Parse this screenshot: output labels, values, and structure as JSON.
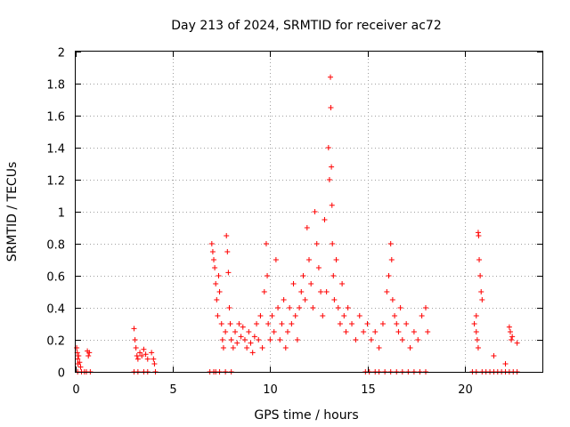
{
  "chart_data": {
    "type": "scatter",
    "title": "Day 213 of 2024, SRMTID for receiver ac72",
    "xlabel": "GPS time / hours",
    "ylabel": "SRMTID / TECUs",
    "xlim": [
      0,
      24
    ],
    "ylim": [
      0,
      2
    ],
    "xticks": [
      0,
      5,
      10,
      15,
      20
    ],
    "xtick_labels": [
      "0",
      "5",
      "10",
      "15",
      "20"
    ],
    "yticks": [
      0,
      0.2,
      0.4,
      0.6,
      0.8,
      1,
      1.2,
      1.4,
      1.6,
      1.8,
      2
    ],
    "ytick_labels": [
      "0",
      "0.2",
      "0.4",
      "0.6",
      "0.8",
      "1",
      "1.2",
      "1.4",
      "1.6",
      "1.8",
      "2"
    ],
    "grid": true,
    "marker": "plus",
    "color": "#ff0000",
    "series": [
      {
        "name": "SRMTID",
        "points": [
          [
            0.05,
            0.15
          ],
          [
            0.08,
            0.12
          ],
          [
            0.1,
            0.08
          ],
          [
            0.12,
            0.05
          ],
          [
            0.15,
            0.1
          ],
          [
            0.2,
            0.06
          ],
          [
            0.25,
            0.03
          ],
          [
            0.6,
            0.13
          ],
          [
            0.65,
            0.1
          ],
          [
            0.7,
            0.12
          ],
          [
            0.1,
            0.0
          ],
          [
            0.3,
            0.0
          ],
          [
            0.45,
            0.0
          ],
          [
            0.55,
            0.0
          ],
          [
            0.75,
            0.0
          ],
          [
            3.0,
            0.27
          ],
          [
            3.05,
            0.2
          ],
          [
            3.1,
            0.15
          ],
          [
            3.15,
            0.1
          ],
          [
            3.2,
            0.08
          ],
          [
            3.3,
            0.12
          ],
          [
            3.4,
            0.1
          ],
          [
            3.5,
            0.14
          ],
          [
            3.6,
            0.11
          ],
          [
            3.7,
            0.08
          ],
          [
            3.9,
            0.12
          ],
          [
            4.0,
            0.08
          ],
          [
            4.05,
            0.05
          ],
          [
            3.0,
            0.0
          ],
          [
            3.2,
            0.0
          ],
          [
            3.5,
            0.0
          ],
          [
            3.7,
            0.0
          ],
          [
            4.1,
            0.0
          ],
          [
            6.9,
            0.0
          ],
          [
            7.1,
            0.0
          ],
          [
            7.2,
            0.0
          ],
          [
            7.4,
            0.0
          ],
          [
            7.7,
            0.0
          ],
          [
            8.0,
            0.0
          ],
          [
            7.0,
            0.8
          ],
          [
            7.05,
            0.75
          ],
          [
            7.1,
            0.7
          ],
          [
            7.15,
            0.65
          ],
          [
            7.2,
            0.55
          ],
          [
            7.25,
            0.45
          ],
          [
            7.3,
            0.35
          ],
          [
            7.35,
            0.6
          ],
          [
            7.4,
            0.5
          ],
          [
            7.5,
            0.3
          ],
          [
            7.55,
            0.2
          ],
          [
            7.6,
            0.15
          ],
          [
            7.7,
            0.25
          ],
          [
            7.75,
            0.85
          ],
          [
            7.8,
            0.75
          ],
          [
            7.85,
            0.62
          ],
          [
            7.9,
            0.4
          ],
          [
            7.95,
            0.3
          ],
          [
            8.0,
            0.2
          ],
          [
            8.1,
            0.15
          ],
          [
            8.2,
            0.25
          ],
          [
            8.3,
            0.18
          ],
          [
            8.4,
            0.3
          ],
          [
            8.5,
            0.22
          ],
          [
            8.6,
            0.28
          ],
          [
            8.7,
            0.2
          ],
          [
            8.8,
            0.15
          ],
          [
            8.9,
            0.25
          ],
          [
            9.0,
            0.18
          ],
          [
            9.1,
            0.12
          ],
          [
            9.2,
            0.22
          ],
          [
            9.3,
            0.3
          ],
          [
            9.4,
            0.2
          ],
          [
            9.5,
            0.35
          ],
          [
            9.6,
            0.15
          ],
          [
            9.7,
            0.5
          ],
          [
            9.8,
            0.8
          ],
          [
            9.85,
            0.6
          ],
          [
            9.9,
            0.3
          ],
          [
            10.0,
            0.2
          ],
          [
            10.1,
            0.35
          ],
          [
            10.2,
            0.25
          ],
          [
            10.3,
            0.7
          ],
          [
            10.4,
            0.4
          ],
          [
            10.5,
            0.2
          ],
          [
            10.6,
            0.3
          ],
          [
            10.7,
            0.45
          ],
          [
            10.8,
            0.15
          ],
          [
            10.9,
            0.25
          ],
          [
            11.0,
            0.4
          ],
          [
            11.1,
            0.3
          ],
          [
            11.2,
            0.55
          ],
          [
            11.3,
            0.35
          ],
          [
            11.4,
            0.2
          ],
          [
            11.5,
            0.4
          ],
          [
            11.6,
            0.5
          ],
          [
            11.7,
            0.6
          ],
          [
            11.8,
            0.45
          ],
          [
            11.9,
            0.9
          ],
          [
            12.0,
            0.7
          ],
          [
            12.1,
            0.55
          ],
          [
            12.2,
            0.4
          ],
          [
            12.3,
            1.0
          ],
          [
            12.4,
            0.8
          ],
          [
            12.5,
            0.65
          ],
          [
            12.6,
            0.5
          ],
          [
            12.7,
            0.35
          ],
          [
            12.8,
            0.95
          ],
          [
            12.9,
            0.5
          ],
          [
            13.0,
            1.4
          ],
          [
            13.05,
            1.2
          ],
          [
            13.1,
            1.84
          ],
          [
            13.12,
            1.65
          ],
          [
            13.15,
            1.28
          ],
          [
            13.18,
            1.04
          ],
          [
            13.2,
            0.8
          ],
          [
            13.25,
            0.6
          ],
          [
            13.3,
            0.45
          ],
          [
            13.4,
            0.7
          ],
          [
            13.5,
            0.4
          ],
          [
            13.6,
            0.3
          ],
          [
            13.7,
            0.55
          ],
          [
            13.8,
            0.35
          ],
          [
            13.9,
            0.25
          ],
          [
            14.0,
            0.4
          ],
          [
            14.2,
            0.3
          ],
          [
            14.4,
            0.2
          ],
          [
            14.6,
            0.35
          ],
          [
            14.8,
            0.25
          ],
          [
            15.0,
            0.3
          ],
          [
            15.2,
            0.2
          ],
          [
            15.4,
            0.25
          ],
          [
            15.6,
            0.15
          ],
          [
            15.8,
            0.3
          ],
          [
            16.0,
            0.5
          ],
          [
            16.1,
            0.6
          ],
          [
            16.2,
            0.8
          ],
          [
            16.25,
            0.7
          ],
          [
            16.3,
            0.45
          ],
          [
            16.4,
            0.35
          ],
          [
            16.5,
            0.3
          ],
          [
            16.6,
            0.25
          ],
          [
            16.7,
            0.4
          ],
          [
            16.8,
            0.2
          ],
          [
            17.0,
            0.3
          ],
          [
            17.2,
            0.15
          ],
          [
            17.4,
            0.25
          ],
          [
            17.6,
            0.2
          ],
          [
            17.8,
            0.35
          ],
          [
            18.0,
            0.4
          ],
          [
            18.1,
            0.25
          ],
          [
            14.9,
            0.0
          ],
          [
            15.1,
            0.0
          ],
          [
            15.4,
            0.0
          ],
          [
            15.6,
            0.0
          ],
          [
            15.9,
            0.0
          ],
          [
            16.2,
            0.0
          ],
          [
            16.5,
            0.0
          ],
          [
            16.8,
            0.0
          ],
          [
            17.1,
            0.0
          ],
          [
            17.4,
            0.0
          ],
          [
            17.7,
            0.0
          ],
          [
            18.0,
            0.0
          ],
          [
            20.5,
            0.3
          ],
          [
            20.6,
            0.35
          ],
          [
            20.7,
            0.87
          ],
          [
            20.72,
            0.85
          ],
          [
            20.75,
            0.7
          ],
          [
            20.8,
            0.6
          ],
          [
            20.85,
            0.5
          ],
          [
            20.9,
            0.45
          ],
          [
            20.6,
            0.25
          ],
          [
            20.65,
            0.2
          ],
          [
            20.7,
            0.15
          ],
          [
            21.5,
            0.1
          ],
          [
            22.1,
            0.05
          ],
          [
            22.3,
            0.28
          ],
          [
            22.35,
            0.25
          ],
          [
            22.4,
            0.2
          ],
          [
            22.45,
            0.22
          ],
          [
            22.7,
            0.18
          ],
          [
            20.4,
            0.0
          ],
          [
            20.6,
            0.0
          ],
          [
            20.9,
            0.0
          ],
          [
            21.1,
            0.0
          ],
          [
            21.3,
            0.0
          ],
          [
            21.5,
            0.0
          ],
          [
            21.7,
            0.0
          ],
          [
            21.9,
            0.0
          ],
          [
            22.1,
            0.0
          ],
          [
            22.3,
            0.0
          ],
          [
            22.5,
            0.0
          ],
          [
            22.7,
            0.0
          ]
        ]
      }
    ]
  }
}
